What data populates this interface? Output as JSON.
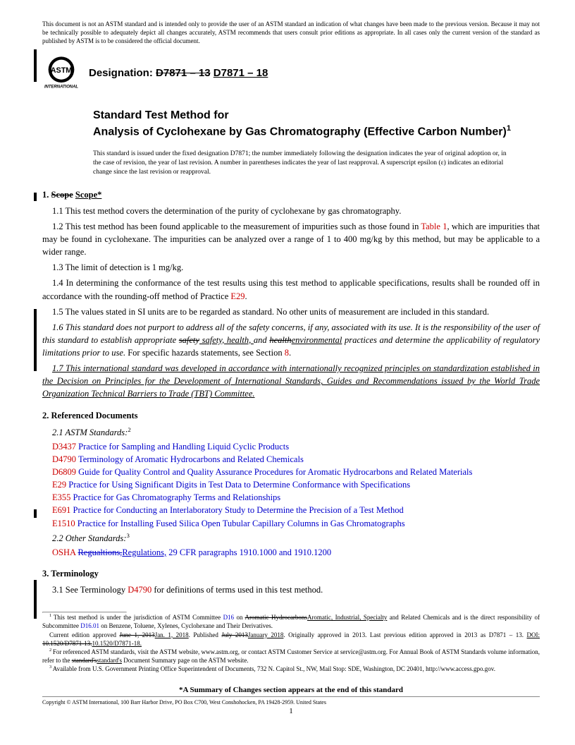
{
  "disclaimer": "This document is not an ASTM standard and is intended only to provide the user of an ASTM standard an indication of what changes have been made to the previous version. Because it may not be technically possible to adequately depict all changes accurately, ASTM recommends that users consult prior editions as appropriate. In all cases only the current version of the standard as published by ASTM is to be considered the official document.",
  "designation_label": "Designation:",
  "designation_old": "D7871 – 13",
  "designation_new": "D7871 – 18",
  "title_line1": "Standard Test Method for",
  "title_line2": "Analysis of Cyclohexane by Gas Chromatography (Effective Carbon Number)",
  "title_sup": "1",
  "issued_note": "This standard is issued under the fixed designation D7871; the number immediately following the designation indicates the year of original adoption or, in the case of revision, the year of last revision. A number in parentheses indicates the year of last reapproval. A superscript epsilon (ε) indicates an editorial change since the last revision or reapproval.",
  "s1": {
    "head_num": "1.",
    "head_old": "Scope",
    "head_new": "Scope*",
    "p11": "1.1 This test method covers the determination of the purity of cyclohexane by gas chromatography.",
    "p12a": "1.2 This test method has been found applicable to the measurement of impurities such as those found in ",
    "p12_link": "Table 1",
    "p12b": ", which are impurities that may be found in cyclohexane. The impurities can be analyzed over a range of 1 to 400 mg/kg by this method, but may be applicable to a wider range.",
    "p13": "1.3 The limit of detection is 1 mg/kg.",
    "p14a": "1.4 In determining the conformance of the test results using this test method to applicable specifications, results shall be rounded off in accordance with the rounding-off method of Practice ",
    "p14_link": "E29",
    "p14b": ".",
    "p15": "1.5 The values stated in SI units are to be regarded as standard. No other units of measurement are included in this standard.",
    "p16a": "1.6 This standard does not purport to address all of the safety concerns, if any, associated with its use. It is the responsibility of the user of this standard to establish appropriate ",
    "p16_strike1": "safety",
    "p16_mid1": " safety, health, ",
    "p16_mid2": "and ",
    "p16_strike2": "health",
    "p16_new": "environmental",
    "p16b": " practices and determine the applicability of regulatory limitations prior to use.",
    "p16c": " For specific hazards statements, see Section ",
    "p16_link": "8",
    "p16d": ".",
    "p17": "1.7 This international standard was developed in accordance with internationally recognized principles on standardization established in the Decision on Principles for the Development of International Standards, Guides and Recommendations issued by the World Trade Organization Technical Barriers to Trade (TBT) Committee."
  },
  "s2": {
    "head": "2. Referenced Documents",
    "p21": "2.1 ASTM Standards:",
    "sup2": "2",
    "refs": [
      {
        "code": "D3437",
        "txt": "Practice for Sampling and Handling Liquid Cyclic Products"
      },
      {
        "code": "D4790",
        "txt": "Terminology of Aromatic Hydrocarbons and Related Chemicals"
      },
      {
        "code": "D6809",
        "txt": "Guide for Quality Control and Quality Assurance Procedures for Aromatic Hydrocarbons and Related Materials"
      },
      {
        "code": "E29",
        "txt": "Practice for Using Significant Digits in Test Data to Determine Conformance with Specifications"
      },
      {
        "code": "E355",
        "txt": "Practice for Gas Chromatography Terms and Relationships"
      },
      {
        "code": "E691",
        "txt": "Practice for Conducting an Interlaboratory Study to Determine the Precision of a Test Method"
      },
      {
        "code": "E1510",
        "txt": "Practice for Installing Fused Silica Open Tubular Capillary Columns in Gas Chromatographs"
      }
    ],
    "p22": "2.2 Other Standards:",
    "sup3": "3",
    "osha_a": "OSHA ",
    "osha_strike": "Regualtions,",
    "osha_new": "Regulations,",
    "osha_b": " 29 CFR paragraphs 1910.1000 and 1910.1200"
  },
  "s3": {
    "head": "3. Terminology",
    "p31a": "3.1 See Terminology ",
    "p31_link": "D4790",
    "p31b": " for definitions of terms used in this test method."
  },
  "foot": {
    "f1a": "This test method is under the jurisdiction of ASTM Committee ",
    "f1_d16": "D16",
    "f1b": " on ",
    "f1_strike1": "Aromatic Hydrocarbons",
    "f1_new1": "Aromatic, Industrial, Specialty",
    "f1c": " and Related Chemicals and is the direct responsibility of Subcommittee ",
    "f1_d1601": "D16.01",
    "f1d": " on Benzene, Toluene, Xylenes, Cyclohexane and Their Derivatives.",
    "f1e": "Current edition approved ",
    "f1_strike2": "June 1, 2013",
    "f1_new2": "Jan. 1, 2018",
    "f1f": ". Published ",
    "f1_strike3": "July 2013",
    "f1_new3": "January 2018",
    "f1g": ". Originally approved in 2013. Last previous edition approved in 2013 as D7871 – 13. ",
    "f1h": "DOI: ",
    "f1_strike4": "10.1520/D7871-13.",
    "f1_new4": "10.1520/D7871-18.",
    "f2": "For referenced ASTM standards, visit the ASTM website, www.astm.org, or contact ASTM Customer Service at service@astm.org. For Annual Book of ASTM Standards volume information, refer to the ",
    "f2_strike": "standard's",
    "f2_new": "standard's",
    "f2b": " Document Summary page on the ASTM website.",
    "f3": "Available from U.S. Government Printing Office Superintendent of Documents, 732 N. Capitol St., NW, Mail Stop: SDE, Washington, DC 20401, http://www.access.gpo.gov."
  },
  "summary": "*A Summary of Changes section appears at the end of this standard",
  "copyright": "Copyright © ASTM International, 100 Barr Harbor Drive, PO Box C700, West Conshohocken, PA 19428-2959. United States",
  "pagenum": "1"
}
